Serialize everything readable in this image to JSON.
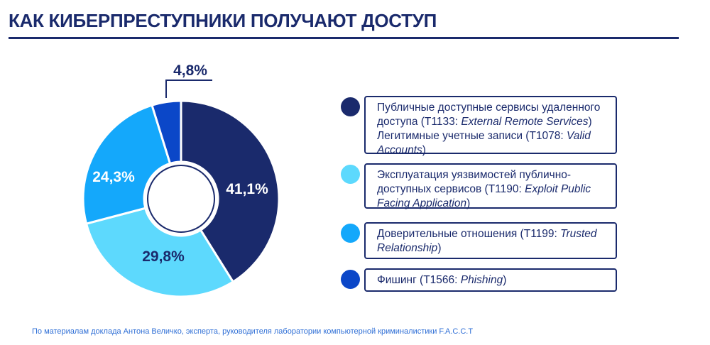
{
  "title": "КАК КИБЕРПРЕСТУПНИКИ ПОЛУЧАЮТ ДОСТУП",
  "chart_data": {
    "type": "pie",
    "title": "КАК КИБЕРПРЕСТУПНИКИ ПОЛУЧАЮТ ДОСТУП",
    "donut": true,
    "categories": [
      "Публичные доступные сервисы удаленного доступа / Легитимные учетные записи",
      "Эксплуатация уязвимостей публично-доступных сервисов",
      "Доверительные отношения",
      "Фишинг"
    ],
    "values": [
      41.1,
      29.8,
      24.3,
      4.8
    ],
    "labels": [
      "41,1%",
      "29,8%",
      "24,3%",
      "4,8%"
    ],
    "colors": [
      "#1a2a6c",
      "#5dd9fd",
      "#14a8fb",
      "#0b47c8"
    ],
    "label_colors": [
      "#ffffff",
      "#1a2a6c",
      "#ffffff",
      "#1a2a6c"
    ],
    "legend_position": "right"
  },
  "legend": [
    {
      "parts": [
        [
          "Публичные доступные сервисы удаленного доступа (T1133: ",
          ""
        ],
        [
          "External Remote Services",
          "i"
        ],
        [
          ")",
          ""
        ],
        [
          "Легитимные учетные записи (T1078: ",
          "br"
        ],
        [
          "Valid Accounts",
          "i"
        ],
        [
          ")",
          ""
        ]
      ]
    },
    {
      "parts": [
        [
          "Эксплуатация уязвимостей публично-доступных сервисов (T1190: ",
          ""
        ],
        [
          "Exploit Public Facing Application",
          "i"
        ],
        [
          ")",
          ""
        ]
      ]
    },
    {
      "parts": [
        [
          "Доверительные отношения (T1199: ",
          ""
        ],
        [
          "Trusted Relationship",
          "i"
        ],
        [
          ")",
          ""
        ]
      ]
    },
    {
      "parts": [
        [
          "Фишинг (T1566: ",
          ""
        ],
        [
          "Phishing",
          "i"
        ],
        [
          ")",
          ""
        ]
      ]
    }
  ],
  "footer": "По материалам доклада Антона Величко, эксперта, руководителя лаборатории компьютерной криминалистики F.A.C.C.T"
}
